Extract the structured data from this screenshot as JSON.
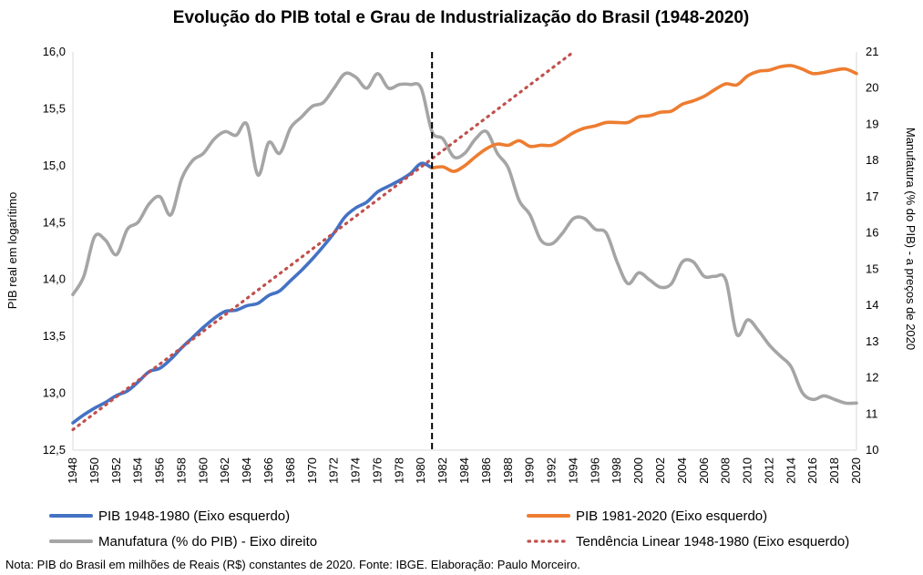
{
  "chart_data": {
    "type": "line",
    "title": "Evolução do PIB total e Grau de Industrialização do Brasil (1948-2020)",
    "ylabel_left": "PIB real em logarítimo",
    "ylabel_right": "Manufatura (% do PIB) - a preços de 2020",
    "ylim_left": [
      12.5,
      16.0
    ],
    "ylim_right": [
      10,
      21
    ],
    "xlim": [
      1948,
      2020
    ],
    "yticks_left": [
      "12,5",
      "13,0",
      "13,5",
      "14,0",
      "14,5",
      "15,0",
      "15,5",
      "16,0"
    ],
    "yticks_right": [
      "10",
      "11",
      "12",
      "13",
      "14",
      "15",
      "16",
      "17",
      "18",
      "19",
      "20",
      "21"
    ],
    "xticks": [
      "1948",
      "1950",
      "1952",
      "1954",
      "1956",
      "1958",
      "1960",
      "1962",
      "1964",
      "1966",
      "1968",
      "1970",
      "1972",
      "1974",
      "1976",
      "1978",
      "1980",
      "1982",
      "1984",
      "1986",
      "1988",
      "1990",
      "1992",
      "1994",
      "1996",
      "1998",
      "2000",
      "2002",
      "2004",
      "2006",
      "2008",
      "2010",
      "2012",
      "2014",
      "2016",
      "2018",
      "2020"
    ],
    "grid": false,
    "legend_placement": "bottom",
    "vertical_marker": {
      "x": 1981,
      "style": "dashed"
    },
    "series": [
      {
        "name": "PIB 1948-1980 (Eixo esquerdo)",
        "axis": "left",
        "color": "#4472c4",
        "x": [
          1948,
          1949,
          1950,
          1951,
          1952,
          1953,
          1954,
          1955,
          1956,
          1957,
          1958,
          1959,
          1960,
          1961,
          1962,
          1963,
          1964,
          1965,
          1966,
          1967,
          1968,
          1969,
          1970,
          1971,
          1972,
          1973,
          1974,
          1975,
          1976,
          1977,
          1978,
          1979,
          1980,
          1981
        ],
        "values": [
          12.74,
          12.81,
          12.87,
          12.92,
          12.98,
          13.02,
          13.1,
          13.19,
          13.22,
          13.3,
          13.4,
          13.49,
          13.58,
          13.66,
          13.72,
          13.73,
          13.77,
          13.79,
          13.86,
          13.9,
          13.99,
          14.08,
          14.18,
          14.29,
          14.41,
          14.55,
          14.63,
          14.68,
          14.77,
          14.82,
          14.87,
          14.93,
          15.02,
          14.98
        ]
      },
      {
        "name": "PIB 1981-2020 (Eixo esquerdo)",
        "axis": "left",
        "color": "#ed7d31",
        "x": [
          1981,
          1982,
          1983,
          1984,
          1985,
          1986,
          1987,
          1988,
          1989,
          1990,
          1991,
          1992,
          1993,
          1994,
          1995,
          1996,
          1997,
          1998,
          1999,
          2000,
          2001,
          2002,
          2003,
          2004,
          2005,
          2006,
          2007,
          2008,
          2009,
          2010,
          2011,
          2012,
          2013,
          2014,
          2015,
          2016,
          2017,
          2018,
          2019,
          2020
        ],
        "values": [
          14.98,
          14.99,
          14.95,
          15.0,
          15.08,
          15.15,
          15.19,
          15.18,
          15.22,
          15.17,
          15.18,
          15.18,
          15.23,
          15.29,
          15.33,
          15.35,
          15.38,
          15.38,
          15.38,
          15.43,
          15.44,
          15.47,
          15.48,
          15.54,
          15.57,
          15.61,
          15.67,
          15.72,
          15.71,
          15.79,
          15.83,
          15.84,
          15.87,
          15.88,
          15.85,
          15.81,
          15.82,
          15.84,
          15.85,
          15.81
        ]
      },
      {
        "name": "Manufatura (% do PIB) - Eixo direito",
        "axis": "right",
        "color": "#a5a5a5",
        "x": [
          1948,
          1949,
          1950,
          1951,
          1952,
          1953,
          1954,
          1955,
          1956,
          1957,
          1958,
          1959,
          1960,
          1961,
          1962,
          1963,
          1964,
          1965,
          1966,
          1967,
          1968,
          1969,
          1970,
          1971,
          1972,
          1973,
          1974,
          1975,
          1976,
          1977,
          1978,
          1979,
          1980,
          1981,
          1982,
          1983,
          1984,
          1985,
          1986,
          1987,
          1988,
          1989,
          1990,
          1991,
          1992,
          1993,
          1994,
          1995,
          1996,
          1997,
          1998,
          1999,
          2000,
          2001,
          2002,
          2003,
          2004,
          2005,
          2006,
          2007,
          2008,
          2009,
          2010,
          2011,
          2012,
          2013,
          2014,
          2015,
          2016,
          2017,
          2018,
          2019,
          2020
        ],
        "values": [
          14.3,
          14.8,
          15.9,
          15.8,
          15.4,
          16.1,
          16.3,
          16.8,
          17.0,
          16.5,
          17.5,
          18.0,
          18.2,
          18.6,
          18.8,
          18.7,
          19.0,
          17.6,
          18.5,
          18.2,
          18.9,
          19.2,
          19.5,
          19.6,
          20.0,
          20.4,
          20.3,
          20.0,
          20.4,
          20.0,
          20.1,
          20.1,
          20.0,
          18.8,
          18.6,
          18.1,
          18.2,
          18.6,
          18.8,
          18.2,
          17.8,
          16.9,
          16.5,
          15.8,
          15.7,
          16.0,
          16.4,
          16.4,
          16.1,
          16.0,
          15.2,
          14.6,
          14.9,
          14.7,
          14.5,
          14.6,
          15.2,
          15.2,
          14.8,
          14.8,
          14.7,
          13.2,
          13.6,
          13.3,
          12.9,
          12.6,
          12.3,
          11.6,
          11.4,
          11.5,
          11.4,
          11.3,
          11.3
        ]
      },
      {
        "name": "Tendência Linear 1948-1980 (Eixo esquerdo)",
        "axis": "left",
        "color": "#c0504d",
        "style": "dotted",
        "x": [
          1948,
          1994
        ],
        "values": [
          12.68,
          16.0
        ]
      }
    ],
    "note": "Nota: PIB do Brasil em milhões de Reais (R$) constantes de 2020. Fonte: IBGE. Elaboração: Paulo Morceiro."
  }
}
